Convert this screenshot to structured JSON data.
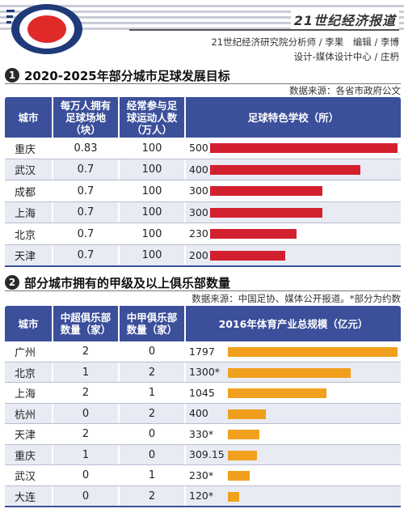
{
  "header": {
    "brand": "21世纪经济报道",
    "credit_line1": "21世纪经济研究院分析师 / 李果　编辑 / 李博",
    "credit_line2": "设计-媒体设计中心 / 庄枬"
  },
  "colors": {
    "header_blue": "#3b4f9a",
    "row_alt": "#e8ebf4",
    "bar_red": "#d3202f",
    "bar_orange": "#f0a01e",
    "logo_red": "#e02a2a",
    "logo_navy": "#1f3a78"
  },
  "section1": {
    "number": "1",
    "title": "2020-2025年部分城市足球发展目标",
    "source": "数据来源：各省市政府公文",
    "columns": [
      "城市",
      "每万人拥有\n足球场地\n（块）",
      "经常参与足\n球运动人数\n（万人）",
      "足球特色学校（所）"
    ],
    "rows": [
      {
        "city": "重庆",
        "fields": "0.83",
        "players": "100",
        "schools_label": "500"
      },
      {
        "city": "武汉",
        "fields": "0.7",
        "players": "100",
        "schools_label": "400"
      },
      {
        "city": "成都",
        "fields": "0.7",
        "players": "100",
        "schools_label": "300"
      },
      {
        "city": "上海",
        "fields": "0.7",
        "players": "100",
        "schools_label": "300"
      },
      {
        "city": "北京",
        "fields": "0.7",
        "players": "100",
        "schools_label": "230"
      },
      {
        "city": "天津",
        "fields": "0.7",
        "players": "100",
        "schools_label": "200"
      }
    ]
  },
  "section2": {
    "number": "2",
    "title": "部分城市拥有的甲级及以上俱乐部数量",
    "source": "数据来源：中国足协、媒体公开报道。*部分为约数",
    "columns": [
      "城市",
      "中超俱乐部\n数量（家）",
      "中甲俱乐部\n数量（家）",
      "2016年体育产业总规模（亿元）"
    ],
    "rows": [
      {
        "city": "广州",
        "csl": "2",
        "cl1": "0",
        "scale_label": "1797"
      },
      {
        "city": "北京",
        "csl": "1",
        "cl1": "2",
        "scale_label": "1300*"
      },
      {
        "city": "上海",
        "csl": "2",
        "cl1": "1",
        "scale_label": "1045"
      },
      {
        "city": "杭州",
        "csl": "0",
        "cl1": "2",
        "scale_label": "400"
      },
      {
        "city": "天津",
        "csl": "2",
        "cl1": "0",
        "scale_label": "330*"
      },
      {
        "city": "重庆",
        "csl": "1",
        "cl1": "0",
        "scale_label": "309.15"
      },
      {
        "city": "武汉",
        "csl": "0",
        "cl1": "1",
        "scale_label": "230*"
      },
      {
        "city": "大连",
        "csl": "0",
        "cl1": "2",
        "scale_label": "120*"
      }
    ]
  },
  "chart_data": [
    {
      "type": "bar",
      "title": "足球特色学校（所）",
      "categories": [
        "重庆",
        "武汉",
        "成都",
        "上海",
        "北京",
        "天津"
      ],
      "values": [
        500,
        400,
        300,
        300,
        230,
        200
      ],
      "xlim": [
        0,
        500
      ]
    },
    {
      "type": "bar",
      "title": "2016年体育产业总规模（亿元）",
      "categories": [
        "广州",
        "北京",
        "上海",
        "杭州",
        "天津",
        "重庆",
        "武汉",
        "大连"
      ],
      "values": [
        1797,
        1300,
        1045,
        400,
        330,
        309.15,
        230,
        120
      ],
      "xlim": [
        0,
        1797
      ]
    }
  ]
}
